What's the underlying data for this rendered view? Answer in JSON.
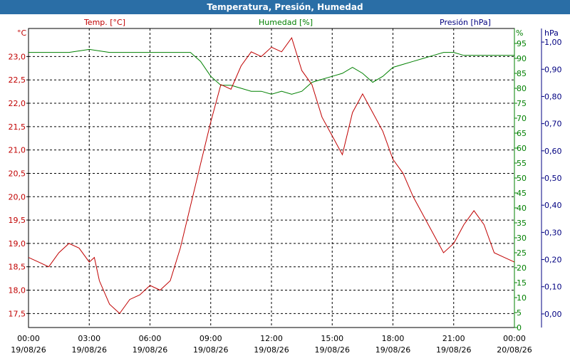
{
  "window": {
    "title": "Temperatura, Presión, Humedad"
  },
  "colors": {
    "temperature": "#c00000",
    "humidity": "#008000",
    "pressure": "#000080",
    "title_bar": "#2a6ea6"
  },
  "chart_data": {
    "type": "line",
    "title": "Temperatura, Presión, Humedad",
    "grid": true,
    "x_ticks": [
      {
        "time": "00:00",
        "date": "19/08/26"
      },
      {
        "time": "03:00",
        "date": "19/08/26"
      },
      {
        "time": "06:00",
        "date": "19/08/26"
      },
      {
        "time": "09:00",
        "date": "19/08/26"
      },
      {
        "time": "12:00",
        "date": "19/08/26"
      },
      {
        "time": "15:00",
        "date": "19/08/26"
      },
      {
        "time": "18:00",
        "date": "19/08/26"
      },
      {
        "time": "21:00",
        "date": "19/08/26"
      },
      {
        "time": "00:00",
        "date": "20/08/26"
      }
    ],
    "xlim": [
      "19/08/26 00:00",
      "20/08/26 00:00"
    ],
    "axes": {
      "temperature": {
        "label": "Temp. [°C]",
        "unit": "°C",
        "ylim": [
          17.2,
          23.6
        ],
        "ticks": [
          "17,5",
          "18,0",
          "18,5",
          "19,0",
          "19,5",
          "20,0",
          "20,5",
          "21,0",
          "21,5",
          "22,0",
          "22,5",
          "23,0"
        ]
      },
      "humidity": {
        "label": "Humedad [%]",
        "unit": "%",
        "ylim": [
          0,
          100
        ],
        "ticks": [
          "0",
          "5",
          "10",
          "15",
          "20",
          "25",
          "30",
          "35",
          "40",
          "45",
          "50",
          "55",
          "60",
          "65",
          "70",
          "75",
          "80",
          "85",
          "90",
          "95"
        ]
      },
      "pressure": {
        "label": "Presión [hPa]",
        "unit": "hPa",
        "ylim": [
          -0.05,
          1.05
        ],
        "ticks": [
          "0,00",
          "0,10",
          "0,20",
          "0,30",
          "0,40",
          "0,50",
          "0,60",
          "0,70",
          "0,80",
          "0,90",
          "1,00"
        ]
      }
    },
    "series": [
      {
        "name": "Temp. [°C]",
        "axis": "temperature",
        "x": [
          "00:00",
          "00:30",
          "01:00",
          "01:30",
          "02:00",
          "02:30",
          "03:00",
          "03:15",
          "03:30",
          "04:00",
          "04:30",
          "05:00",
          "05:30",
          "06:00",
          "06:30",
          "07:00",
          "07:30",
          "08:00",
          "08:30",
          "09:00",
          "09:30",
          "10:00",
          "10:30",
          "11:00",
          "11:30",
          "12:00",
          "12:30",
          "13:00",
          "13:30",
          "14:00",
          "14:30",
          "15:00",
          "15:30",
          "16:00",
          "16:30",
          "17:00",
          "17:30",
          "18:00",
          "18:30",
          "19:00",
          "19:30",
          "20:00",
          "20:30",
          "21:00",
          "21:30",
          "22:00",
          "22:30",
          "23:00",
          "23:30",
          "00:00"
        ],
        "values": [
          18.7,
          18.6,
          18.5,
          18.8,
          19.0,
          18.9,
          18.6,
          18.7,
          18.2,
          17.7,
          17.5,
          17.8,
          17.9,
          18.1,
          18.0,
          18.2,
          18.9,
          19.8,
          20.7,
          21.6,
          22.4,
          22.3,
          22.8,
          23.1,
          23.0,
          23.2,
          23.1,
          23.4,
          22.7,
          22.4,
          21.7,
          21.3,
          20.9,
          21.8,
          22.2,
          21.8,
          21.4,
          20.8,
          20.5,
          20.0,
          19.6,
          19.2,
          18.8,
          19.0,
          19.4,
          19.7,
          19.4,
          18.8,
          18.7,
          18.6
        ]
      },
      {
        "name": "Humedad [%]",
        "axis": "humidity",
        "x": [
          "00:00",
          "01:00",
          "02:00",
          "03:00",
          "04:00",
          "05:00",
          "06:00",
          "07:00",
          "07:30",
          "08:00",
          "08:30",
          "09:00",
          "09:30",
          "10:00",
          "10:30",
          "11:00",
          "11:30",
          "12:00",
          "12:30",
          "13:00",
          "13:30",
          "14:00",
          "14:30",
          "15:00",
          "15:30",
          "16:00",
          "16:30",
          "17:00",
          "17:30",
          "18:00",
          "18:30",
          "19:00",
          "19:30",
          "20:00",
          "20:30",
          "21:00",
          "21:30",
          "22:00",
          "23:00",
          "00:00"
        ],
        "values": [
          92,
          92,
          92,
          93,
          92,
          92,
          92,
          92,
          92,
          92,
          89,
          84,
          81,
          81,
          80,
          79,
          79,
          78,
          79,
          78,
          79,
          82,
          83,
          84,
          85,
          87,
          85,
          82,
          84,
          87,
          88,
          89,
          90,
          91,
          92,
          92,
          91,
          91,
          91,
          91
        ]
      },
      {
        "name": "Presión [hPa]",
        "axis": "pressure",
        "x": [],
        "values": []
      }
    ]
  }
}
